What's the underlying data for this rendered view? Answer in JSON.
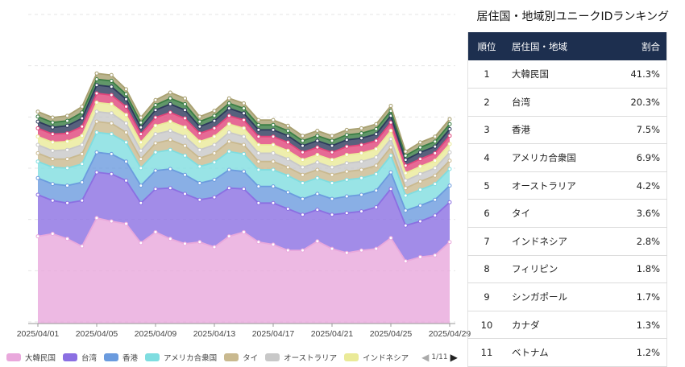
{
  "chart_data": {
    "type": "area",
    "stacked": true,
    "x": [
      "2025/04/01",
      "2025/04/02",
      "2025/04/03",
      "2025/04/04",
      "2025/04/05",
      "2025/04/06",
      "2025/04/07",
      "2025/04/08",
      "2025/04/09",
      "2025/04/10",
      "2025/04/11",
      "2025/04/12",
      "2025/04/13",
      "2025/04/14",
      "2025/04/15",
      "2025/04/16",
      "2025/04/17",
      "2025/04/18",
      "2025/04/19",
      "2025/04/20",
      "2025/04/21",
      "2025/04/22",
      "2025/04/23",
      "2025/04/24",
      "2025/04/25",
      "2025/04/26",
      "2025/04/27",
      "2025/04/28",
      "2025/04/29"
    ],
    "x_tick_labels": [
      "2025/04/01",
      "2025/04/05",
      "2025/04/09",
      "2025/04/13",
      "2025/04/17",
      "2025/04/21",
      "2025/04/25",
      "2025/04/29"
    ],
    "ylim": [
      0,
      370
    ],
    "grid": true,
    "legend_position": "bottom",
    "series": [
      {
        "name": "大韓民国",
        "color": "#e9a8dc",
        "values": [
          105,
          108,
          102,
          93,
          127,
          123,
          120,
          97,
          110,
          102,
          96,
          98,
          92,
          105,
          110,
          98,
          95,
          88,
          88,
          99,
          90,
          85,
          88,
          90,
          103,
          75,
          80,
          82,
          98
        ]
      },
      {
        "name": "台湾",
        "color": "#8b6fe2",
        "values": [
          50,
          40,
          43,
          55,
          55,
          57,
          52,
          48,
          52,
          61,
          60,
          51,
          60,
          58,
          52,
          47,
          50,
          50,
          43,
          38,
          41,
          48,
          47,
          50,
          59,
          43,
          43,
          48,
          48
        ]
      },
      {
        "name": "香港",
        "color": "#6b9bde",
        "values": [
          20,
          20,
          21,
          22,
          24,
          24,
          23,
          21,
          22,
          23,
          23,
          20,
          21,
          22,
          21,
          20,
          20,
          20,
          19,
          19,
          19,
          20,
          20,
          20,
          20,
          18,
          19,
          19,
          20
        ]
      },
      {
        "name": "アメリカ合衆国",
        "color": "#7fdde0",
        "values": [
          20,
          20,
          21,
          22,
          24,
          24,
          23,
          21,
          22,
          23,
          23,
          20,
          21,
          22,
          21,
          20,
          20,
          20,
          19,
          19,
          19,
          20,
          20,
          20,
          20,
          18,
          19,
          19,
          20
        ]
      },
      {
        "name": "タイ",
        "color": "#c9b98f",
        "values": [
          10,
          10,
          11,
          12,
          13,
          13,
          12,
          11,
          11,
          12,
          12,
          10,
          11,
          12,
          11,
          10,
          10,
          10,
          10,
          10,
          10,
          10,
          10,
          10,
          10,
          9,
          10,
          10,
          10
        ]
      },
      {
        "name": "オーストラリア",
        "color": "#c8c8c8",
        "values": [
          10,
          10,
          11,
          11,
          12,
          12,
          11,
          10,
          11,
          11,
          11,
          10,
          10,
          11,
          10,
          10,
          10,
          10,
          9,
          9,
          9,
          10,
          10,
          10,
          10,
          9,
          9,
          9,
          10
        ]
      },
      {
        "name": "インドネシア",
        "color": "#eaea98",
        "values": [
          10,
          10,
          10,
          11,
          11,
          11,
          10,
          10,
          10,
          11,
          11,
          10,
          10,
          10,
          10,
          10,
          10,
          10,
          9,
          9,
          9,
          10,
          10,
          10,
          10,
          9,
          9,
          9,
          10
        ]
      },
      {
        "name": "フィリピン",
        "color": "#e0457a",
        "values": [
          10,
          10,
          10,
          11,
          11,
          11,
          10,
          10,
          10,
          11,
          11,
          10,
          10,
          10,
          10,
          10,
          10,
          10,
          9,
          9,
          9,
          10,
          10,
          10,
          10,
          9,
          9,
          9,
          10
        ]
      },
      {
        "name": "シンガポール",
        "color": "#2d3a5c",
        "values": [
          8,
          8,
          9,
          10,
          10,
          10,
          9,
          8,
          9,
          10,
          10,
          8,
          9,
          9,
          8,
          8,
          8,
          8,
          8,
          8,
          8,
          8,
          8,
          8,
          8,
          7,
          8,
          8,
          8
        ]
      },
      {
        "name": "カナダ",
        "color": "#3a7d44",
        "values": [
          6,
          6,
          6,
          7,
          7,
          7,
          6,
          6,
          6,
          7,
          7,
          6,
          6,
          6,
          6,
          6,
          6,
          6,
          6,
          6,
          6,
          6,
          6,
          6,
          6,
          5,
          6,
          6,
          6
        ]
      },
      {
        "name": "ベトナム",
        "color": "#a8a070",
        "values": [
          6,
          6,
          6,
          7,
          7,
          7,
          6,
          6,
          6,
          7,
          7,
          6,
          6,
          6,
          6,
          6,
          6,
          6,
          6,
          6,
          6,
          6,
          6,
          6,
          6,
          5,
          6,
          6,
          6
        ]
      }
    ]
  },
  "legend": {
    "items": [
      {
        "label": "大韓民国",
        "color": "#e9a8dc"
      },
      {
        "label": "台湾",
        "color": "#8b6fe2"
      },
      {
        "label": "香港",
        "color": "#6b9bde"
      },
      {
        "label": "アメリカ合衆国",
        "color": "#7fdde0"
      },
      {
        "label": "タイ",
        "color": "#c9b98f"
      },
      {
        "label": "オーストラリア",
        "color": "#c8c8c8"
      },
      {
        "label": "インドネシア",
        "color": "#eaea98"
      }
    ],
    "page": "1/11"
  },
  "ranking": {
    "title": "居住国・地域別ユニークIDランキング",
    "headers": {
      "rank": "順位",
      "country": "居住国・地域",
      "share": "割合"
    },
    "rows": [
      {
        "rank": "1",
        "country": "大韓民国",
        "share": "41.3%"
      },
      {
        "rank": "2",
        "country": "台湾",
        "share": "20.3%"
      },
      {
        "rank": "3",
        "country": "香港",
        "share": "7.5%"
      },
      {
        "rank": "4",
        "country": "アメリカ合衆国",
        "share": "6.9%"
      },
      {
        "rank": "5",
        "country": "オーストラリア",
        "share": "4.2%"
      },
      {
        "rank": "6",
        "country": "タイ",
        "share": "3.6%"
      },
      {
        "rank": "7",
        "country": "インドネシア",
        "share": "2.8%"
      },
      {
        "rank": "8",
        "country": "フィリピン",
        "share": "1.8%"
      },
      {
        "rank": "9",
        "country": "シンガポール",
        "share": "1.7%"
      },
      {
        "rank": "10",
        "country": "カナダ",
        "share": "1.3%"
      },
      {
        "rank": "11",
        "country": "ベトナム",
        "share": "1.2%"
      }
    ]
  }
}
